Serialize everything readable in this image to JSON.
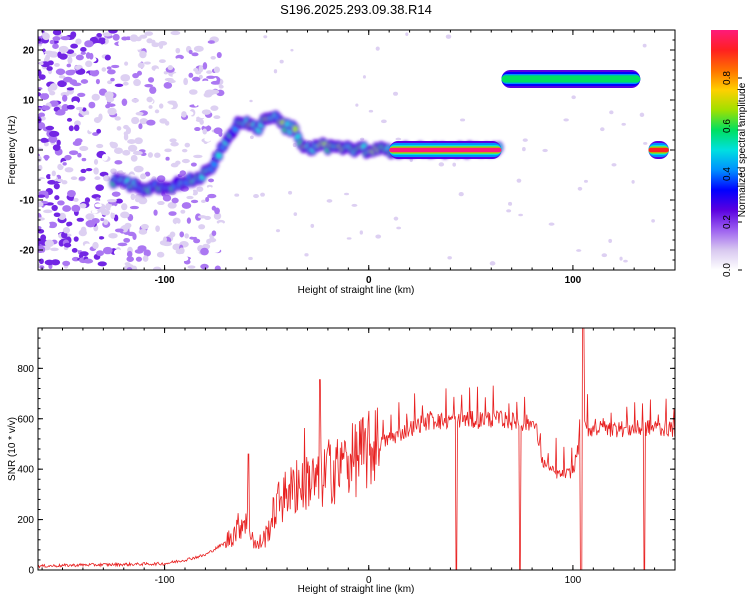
{
  "title": "S196.2025.293.09.38.R14",
  "chart_data": [
    {
      "type": "heatmap",
      "xlabel": "Height of straight line (km)",
      "ylabel": "Frequency (Hz)",
      "xlim": [
        -162,
        150
      ],
      "ylim": [
        -24,
        24
      ],
      "x_ticks": [
        -100,
        0,
        100
      ],
      "y_ticks": [
        -20,
        -10,
        0,
        10,
        20
      ],
      "grid": false,
      "colorbar": {
        "label": "Normalized spectral amplitude",
        "range": [
          0.0,
          1.0
        ],
        "ticks": [
          "0.0",
          "0.2",
          "0.4",
          "0.6",
          "0.8"
        ],
        "colors": [
          "#ffffff",
          "#d8c8f0",
          "#9d60f0",
          "#5a00e0",
          "#0000ff",
          "#0090ff",
          "#00e0e0",
          "#00e060",
          "#a0e000",
          "#ffd000",
          "#ff7000",
          "#ff2020",
          "#ff1a7a"
        ]
      },
      "ridge": [
        {
          "x": -125,
          "y": -6
        },
        {
          "x": -110,
          "y": -7.5
        },
        {
          "x": -95,
          "y": -7
        },
        {
          "x": -85,
          "y": -6
        },
        {
          "x": -78,
          "y": -4
        },
        {
          "x": -70,
          "y": 2
        },
        {
          "x": -63,
          "y": 6
        },
        {
          "x": -55,
          "y": 4
        },
        {
          "x": -48,
          "y": 7
        },
        {
          "x": -42,
          "y": 5
        },
        {
          "x": -36,
          "y": 4
        },
        {
          "x": -32,
          "y": 0
        },
        {
          "x": -25,
          "y": 1
        },
        {
          "x": -15,
          "y": 0.5
        },
        {
          "x": 0,
          "y": 0
        },
        {
          "x": 65,
          "y": 0
        }
      ],
      "segments": [
        {
          "x_start": 10,
          "x_end": 65,
          "y": 0,
          "amplitude": 0.97
        },
        {
          "x_start": 65,
          "x_end": 133,
          "y": 14.2,
          "amplitude": 0.6
        },
        {
          "x_start": 137,
          "x_end": 147,
          "y": 0,
          "amplitude": 0.95
        }
      ]
    },
    {
      "type": "line",
      "xlabel": "Height of straight line (km)",
      "ylabel": "SNR (10 * v/v)",
      "xlim": [
        -162,
        150
      ],
      "ylim": [
        0,
        960
      ],
      "x_ticks": [
        -100,
        0,
        100
      ],
      "y_ticks": [
        0,
        200,
        400,
        600,
        800
      ],
      "grid": false,
      "color": "#e82020",
      "series": [
        {
          "x": [
            -162,
            -140,
            -120,
            -100,
            -90,
            -80,
            -70,
            -65,
            -60,
            -55,
            -50,
            -45,
            -40,
            -35,
            -30,
            -25,
            -20,
            -15,
            -10,
            -5,
            0,
            5,
            10,
            15,
            20,
            25,
            30,
            35,
            40,
            45,
            50,
            55,
            60,
            65,
            70,
            75,
            80,
            82,
            85,
            90,
            95,
            100,
            103,
            105,
            110,
            120,
            130,
            140,
            150
          ],
          "y": [
            15,
            20,
            22,
            25,
            40,
            60,
            110,
            160,
            210,
            90,
            140,
            260,
            300,
            330,
            360,
            340,
            390,
            400,
            420,
            450,
            470,
            500,
            520,
            540,
            560,
            580,
            590,
            590,
            595,
            600,
            595,
            595,
            600,
            595,
            590,
            585,
            580,
            560,
            430,
            390,
            375,
            390,
            500,
            560,
            560,
            560,
            560,
            565,
            560
          ]
        }
      ],
      "spikes": [
        {
          "x": -59,
          "y": 460
        },
        {
          "x": -24,
          "y": 755
        },
        {
          "x": 105,
          "y": 960
        },
        {
          "x": 43,
          "y": 0
        },
        {
          "x": 74,
          "y": 0
        },
        {
          "x": 104,
          "y": 0
        },
        {
          "x": 135,
          "y": 0
        }
      ]
    }
  ]
}
